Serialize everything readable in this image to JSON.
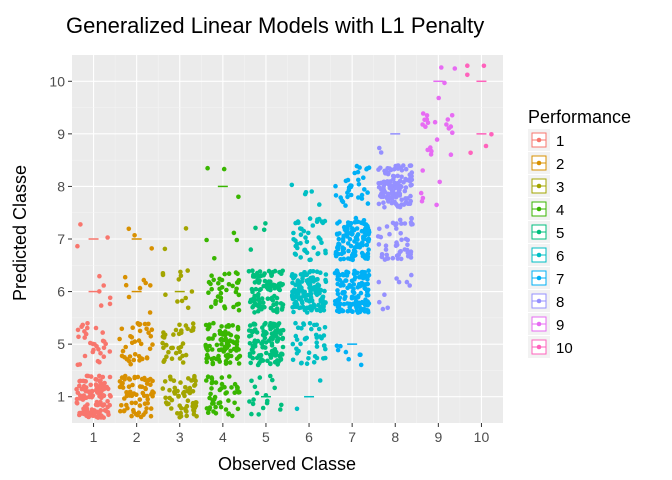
{
  "chart_data": {
    "type": "scatter",
    "title": "Generalized Linear Models with L1 Penalty",
    "xlabel": "Observed Classe",
    "ylabel": "Predicted Classe",
    "x_ticks": [
      "1",
      "2",
      "3",
      "4",
      "5",
      "6",
      "7",
      "8",
      "9",
      "10"
    ],
    "y_ticks": [
      "1",
      "5",
      "6",
      "7",
      "8",
      "9",
      "10"
    ],
    "y_levels": [
      1,
      5,
      6,
      7,
      8,
      9,
      10
    ],
    "jitter": true,
    "grid": true,
    "background": "#ebebeb",
    "legend": {
      "title": "Performance",
      "position": "right",
      "entries": [
        "1",
        "2",
        "3",
        "4",
        "5",
        "6",
        "7",
        "8",
        "9",
        "10"
      ]
    },
    "series": [
      {
        "name": "1",
        "color": "#f8766d",
        "cells": [
          [
            1,
            1,
            130
          ],
          [
            1,
            5,
            30
          ],
          [
            1,
            6,
            6
          ],
          [
            1,
            7,
            3
          ]
        ],
        "medians": [
          [
            1,
            6
          ],
          [
            1,
            7
          ]
        ]
      },
      {
        "name": "2",
        "color": "#d89000",
        "cells": [
          [
            2,
            1,
            70
          ],
          [
            2,
            5,
            38
          ],
          [
            2,
            6,
            8
          ],
          [
            2,
            7,
            3
          ]
        ],
        "medians": [
          [
            2,
            6
          ],
          [
            2,
            7
          ]
        ]
      },
      {
        "name": "3",
        "color": "#a3a500",
        "cells": [
          [
            3,
            1,
            60
          ],
          [
            3,
            5,
            36
          ],
          [
            3,
            6,
            12
          ],
          [
            3,
            7,
            2
          ]
        ],
        "medians": [
          [
            3,
            6
          ]
        ]
      },
      {
        "name": "4",
        "color": "#39b600",
        "cells": [
          [
            4,
            1,
            48
          ],
          [
            4,
            5,
            85
          ],
          [
            4,
            6,
            38
          ],
          [
            4,
            7,
            4
          ],
          [
            4,
            8,
            3
          ]
        ],
        "medians": [
          [
            4,
            8
          ]
        ]
      },
      {
        "name": "5",
        "color": "#00bf7d",
        "cells": [
          [
            5,
            1,
            18
          ],
          [
            5,
            5,
            120
          ],
          [
            5,
            6,
            100
          ],
          [
            5,
            7,
            4
          ]
        ],
        "medians": [
          [
            5,
            1
          ]
        ]
      },
      {
        "name": "6",
        "color": "#00bfc4",
        "cells": [
          [
            6,
            1,
            2
          ],
          [
            6,
            5,
            42
          ],
          [
            6,
            6,
            140
          ],
          [
            6,
            7,
            42
          ],
          [
            6,
            8,
            5
          ]
        ],
        "medians": [
          [
            6,
            1
          ]
        ]
      },
      {
        "name": "7",
        "color": "#00b0f6",
        "cells": [
          [
            7,
            5,
            8
          ],
          [
            7,
            6,
            130
          ],
          [
            7,
            7,
            120
          ],
          [
            7,
            8,
            32
          ]
        ],
        "medians": [
          [
            7,
            5
          ]
        ]
      },
      {
        "name": "8",
        "color": "#9590ff",
        "cells": [
          [
            8,
            6,
            10
          ],
          [
            8,
            7,
            48
          ],
          [
            8,
            8,
            120
          ],
          [
            8,
            9,
            2
          ]
        ],
        "medians": [
          [
            8,
            9
          ]
        ]
      },
      {
        "name": "9",
        "color": "#e76bf3",
        "cells": [
          [
            9,
            8,
            6
          ],
          [
            9,
            9,
            20
          ],
          [
            9,
            10,
            4
          ]
        ],
        "medians": [
          [
            9,
            10
          ]
        ]
      },
      {
        "name": "10",
        "color": "#ff62bc",
        "cells": [
          [
            10,
            9,
            3
          ],
          [
            10,
            10,
            3
          ]
        ],
        "medians": [
          [
            10,
            9
          ],
          [
            10,
            10
          ]
        ]
      }
    ]
  }
}
